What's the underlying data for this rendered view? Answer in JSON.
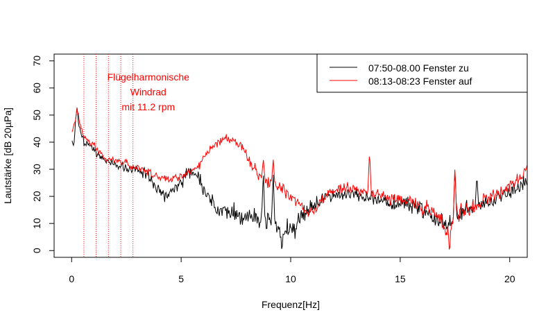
{
  "chart_data": {
    "type": "line",
    "title": "",
    "xlabel": "Frequenz[Hz]",
    "ylabel": "Lautstärke [dB 20µPa]",
    "xlim": [
      -0.8,
      20.8
    ],
    "ylim": [
      -2.5,
      72.5
    ],
    "x_ticks": [
      0,
      5,
      10,
      15,
      20
    ],
    "y_ticks": [
      0,
      10,
      20,
      30,
      40,
      50,
      60,
      70
    ],
    "grid": false,
    "legend_position": "top-right",
    "annotation": {
      "lines": [
        "Flügelharmonische",
        "Windrad",
        "mit 11.2 rpm"
      ],
      "color": "#ff0000",
      "x": 3.5,
      "y": [
        64,
        58.5,
        53
      ]
    },
    "vlines": {
      "x": [
        0.56,
        1.12,
        1.68,
        2.24,
        2.8
      ],
      "color": "#ff0000",
      "style": "dotted"
    },
    "series": [
      {
        "name": "07:50-08.00 Fenster zu",
        "color": "#000000",
        "anchors": [
          [
            0.05,
            40
          ],
          [
            0.1,
            38
          ],
          [
            0.2,
            50
          ],
          [
            0.25,
            52
          ],
          [
            0.3,
            48
          ],
          [
            0.4,
            44
          ],
          [
            0.55,
            40
          ],
          [
            0.8,
            39
          ],
          [
            1.0,
            37
          ],
          [
            1.3,
            35
          ],
          [
            1.6,
            33
          ],
          [
            2.0,
            32
          ],
          [
            2.5,
            30
          ],
          [
            3.0,
            30
          ],
          [
            3.5,
            28
          ],
          [
            3.8,
            24
          ],
          [
            4.0,
            22
          ],
          [
            4.3,
            20
          ],
          [
            4.5,
            21
          ],
          [
            4.8,
            24
          ],
          [
            5.2,
            27
          ],
          [
            5.5,
            29
          ],
          [
            5.8,
            26
          ],
          [
            6.1,
            22
          ],
          [
            6.4,
            18
          ],
          [
            6.8,
            15
          ],
          [
            7.2,
            14
          ],
          [
            7.8,
            13
          ],
          [
            8.3,
            12
          ],
          [
            8.7,
            11
          ],
          [
            9.2,
            9
          ],
          [
            9.6,
            7
          ],
          [
            10.0,
            8
          ],
          [
            10.3,
            10
          ],
          [
            10.6,
            13
          ],
          [
            10.9,
            14
          ],
          [
            11.2,
            18
          ],
          [
            11.6,
            20
          ],
          [
            12.2,
            21
          ],
          [
            12.8,
            21
          ],
          [
            13.3,
            20
          ],
          [
            13.8,
            19
          ],
          [
            14.3,
            18
          ],
          [
            14.8,
            17
          ],
          [
            15.3,
            17
          ],
          [
            15.8,
            16
          ],
          [
            16.2,
            14
          ],
          [
            16.6,
            12
          ],
          [
            16.9,
            10
          ],
          [
            17.2,
            9
          ],
          [
            17.5,
            11
          ],
          [
            17.8,
            13
          ],
          [
            18.2,
            15
          ],
          [
            18.7,
            17
          ],
          [
            19.2,
            18
          ],
          [
            19.6,
            20
          ],
          [
            20.0,
            22
          ],
          [
            20.4,
            23
          ],
          [
            20.8,
            25
          ]
        ],
        "peaks": [
          [
            8.75,
            29
          ],
          [
            9.2,
            29
          ],
          [
            17.5,
            31
          ],
          [
            18.5,
            28
          ]
        ],
        "dips": [
          [
            9.6,
            -1
          ]
        ],
        "noise": [
          [
            0,
            0.8
          ],
          [
            2,
            1.0
          ],
          [
            3.8,
            1.6
          ],
          [
            6.2,
            2.2
          ],
          [
            8.0,
            3.0
          ],
          [
            10.5,
            3.2
          ],
          [
            11.2,
            1.8
          ],
          [
            12,
            1.5
          ],
          [
            14,
            1.8
          ],
          [
            15.8,
            2.2
          ],
          [
            16.3,
            2.6
          ],
          [
            17.4,
            2.6
          ],
          [
            18.5,
            2.0
          ],
          [
            20.8,
            1.8
          ]
        ]
      },
      {
        "name": "08:13-08:23 Fenster auf",
        "color": "#ff0000",
        "anchors": [
          [
            0.05,
            44
          ],
          [
            0.1,
            46
          ],
          [
            0.2,
            50
          ],
          [
            0.25,
            53
          ],
          [
            0.3,
            50
          ],
          [
            0.4,
            46
          ],
          [
            0.55,
            42
          ],
          [
            0.8,
            40
          ],
          [
            1.0,
            39
          ],
          [
            1.3,
            36
          ],
          [
            1.6,
            34
          ],
          [
            2.0,
            33
          ],
          [
            2.5,
            32
          ],
          [
            3.0,
            31
          ],
          [
            3.5,
            29
          ],
          [
            4.0,
            27
          ],
          [
            4.5,
            26
          ],
          [
            5.0,
            27
          ],
          [
            5.5,
            30
          ],
          [
            5.8,
            31
          ],
          [
            6.1,
            35
          ],
          [
            6.5,
            39
          ],
          [
            7.0,
            42
          ],
          [
            7.4,
            41
          ],
          [
            7.8,
            38
          ],
          [
            8.2,
            32
          ],
          [
            8.6,
            27
          ],
          [
            9.0,
            25
          ],
          [
            9.5,
            23
          ],
          [
            9.9,
            21
          ],
          [
            10.2,
            19
          ],
          [
            10.5,
            16
          ],
          [
            10.8,
            14
          ],
          [
            11.1,
            15
          ],
          [
            11.4,
            18
          ],
          [
            11.7,
            21
          ],
          [
            12.2,
            23
          ],
          [
            12.8,
            23
          ],
          [
            13.3,
            22
          ],
          [
            13.8,
            21
          ],
          [
            14.3,
            20
          ],
          [
            14.8,
            19
          ],
          [
            15.3,
            18
          ],
          [
            15.8,
            17
          ],
          [
            16.2,
            15
          ],
          [
            16.6,
            13
          ],
          [
            16.9,
            10
          ],
          [
            17.2,
            8
          ],
          [
            17.5,
            11
          ],
          [
            17.8,
            14
          ],
          [
            18.2,
            16
          ],
          [
            18.7,
            18
          ],
          [
            19.2,
            20
          ],
          [
            19.6,
            22
          ],
          [
            20.0,
            24
          ],
          [
            20.4,
            26
          ],
          [
            20.8,
            29
          ]
        ],
        "peaks": [
          [
            8.75,
            34
          ],
          [
            9.2,
            34
          ],
          [
            13.6,
            37
          ],
          [
            17.5,
            32
          ],
          [
            20.8,
            32
          ]
        ],
        "dips": [
          [
            17.25,
            -2
          ]
        ],
        "noise": [
          [
            0,
            0.8
          ],
          [
            2,
            0.9
          ],
          [
            4,
            1.2
          ],
          [
            6,
            1.0
          ],
          [
            8,
            1.4
          ],
          [
            10,
            1.6
          ],
          [
            11.2,
            1.4
          ],
          [
            13,
            1.4
          ],
          [
            15.8,
            2.0
          ],
          [
            16.4,
            2.6
          ],
          [
            17.4,
            2.6
          ],
          [
            18.5,
            1.8
          ],
          [
            20.8,
            1.6
          ]
        ]
      }
    ]
  }
}
